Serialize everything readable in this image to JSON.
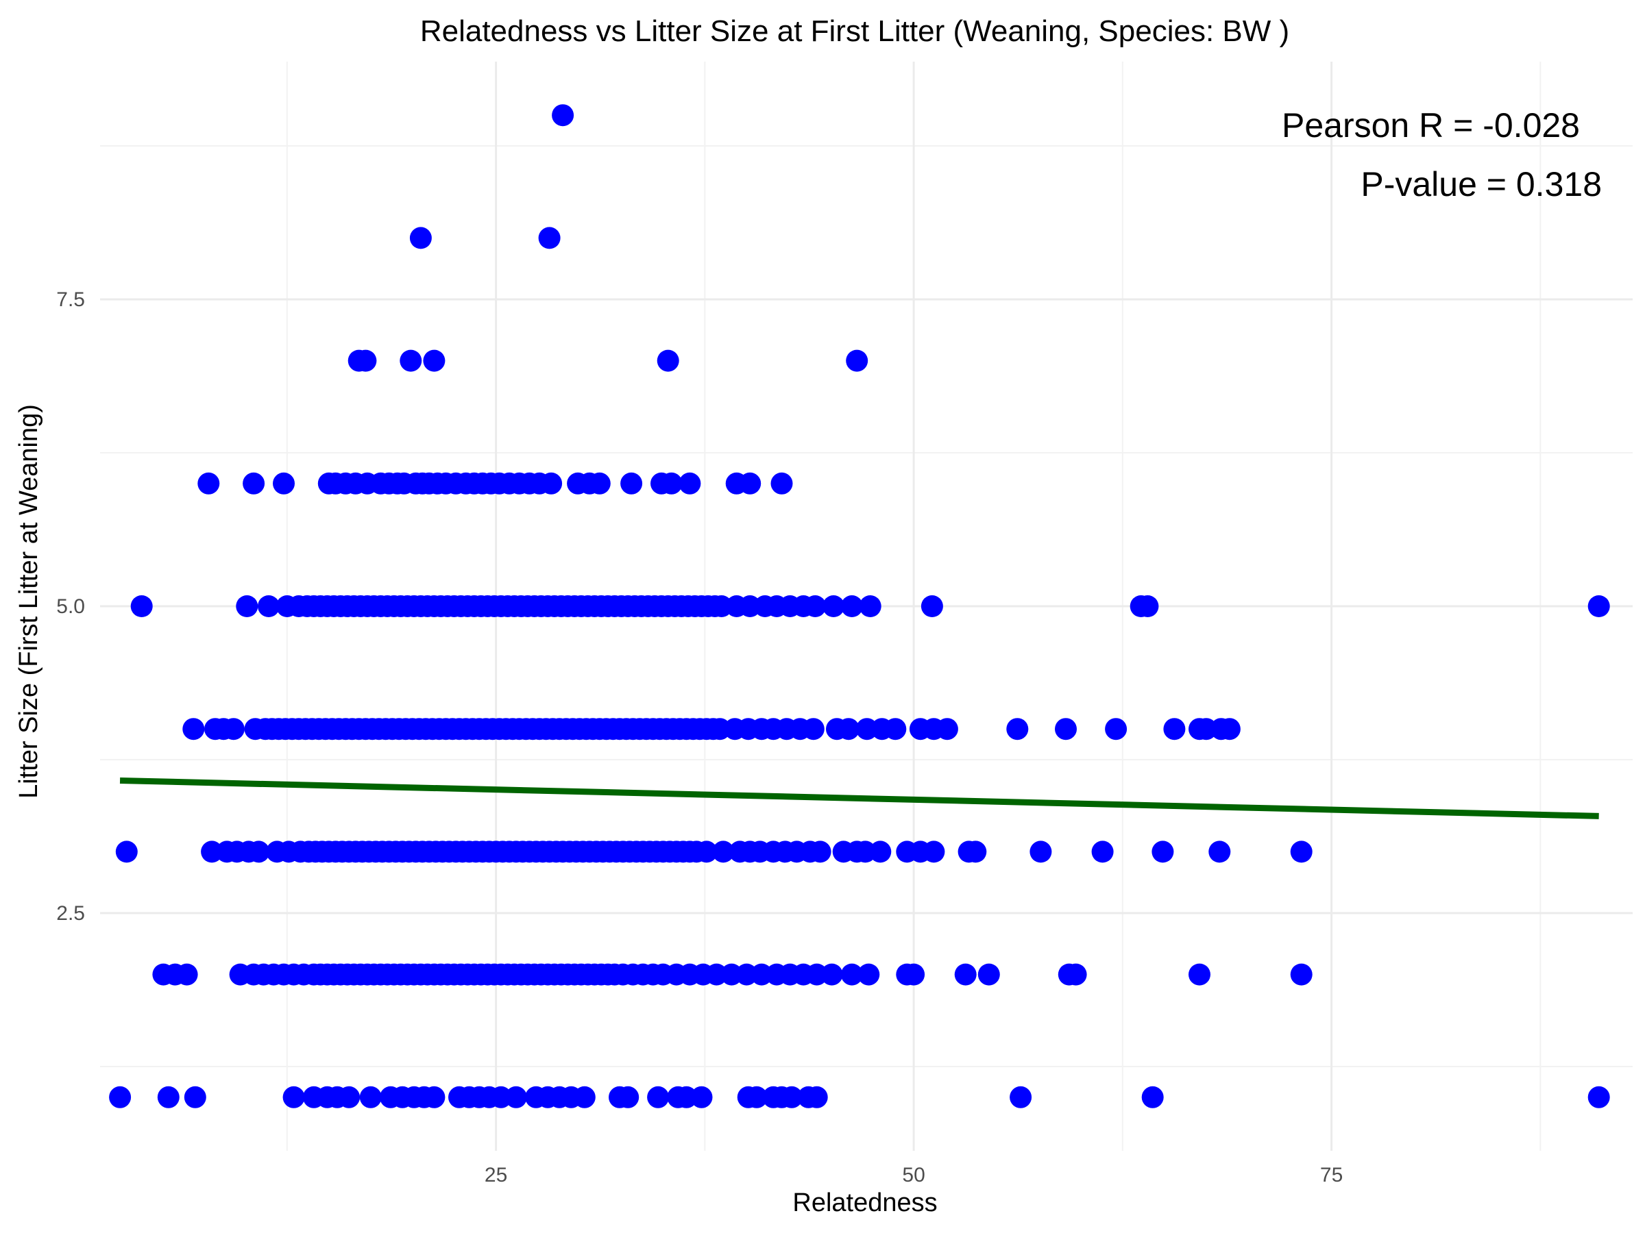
{
  "chart_data": {
    "type": "scatter",
    "title": "Relatedness vs Litter Size at First Litter (Weaning, Species: BW )",
    "xlabel": "Relatedness",
    "ylabel": "Litter Size (First Litter at Weaning)",
    "xlim": [
      -7.5,
      97.5
    ],
    "ylim": [
      0.6,
      9.5
    ],
    "x_ticks": [
      25,
      50,
      75
    ],
    "x_tick_labels": [
      "25",
      "50",
      "75"
    ],
    "y_ticks": [
      2.5,
      5.0,
      7.5
    ],
    "y_tick_labels": [
      "2.5",
      "5.0",
      "7.5"
    ],
    "grid": true,
    "point_color": "#0000ff",
    "fit_line_color": "#006400",
    "annotations": [
      "Pearson R = -0.028",
      "P-value = 0.318"
    ],
    "fit_line": {
      "x": [
        2.5,
        91.0
      ],
      "y": [
        3.58,
        3.29
      ]
    },
    "series": [
      {
        "y": 9,
        "x": [
          29.0
        ]
      },
      {
        "y": 8,
        "x": [
          20.5,
          28.2
        ]
      },
      {
        "y": 7,
        "x": [
          16.8,
          17.2,
          19.9,
          21.3,
          35.3,
          46.6
        ]
      },
      {
        "y": 6,
        "x": [
          7.8,
          10.5,
          12.3,
          15.0,
          15.4,
          16.0,
          16.6,
          17.3,
          18.1,
          18.6,
          19.1,
          19.5,
          20.2,
          20.6,
          21.0,
          21.5,
          22.0,
          22.6,
          23.2,
          23.7,
          24.2,
          24.7,
          25.2,
          25.8,
          26.4,
          27.0,
          27.6,
          28.3,
          29.9,
          30.6,
          31.2,
          33.1,
          34.9,
          35.5,
          36.6,
          39.4,
          40.2,
          42.1
        ]
      },
      {
        "y": 5,
        "x": [
          3.8,
          10.1,
          11.4,
          12.5,
          13.2,
          13.7,
          14.1,
          14.5,
          14.9,
          15.3,
          15.7,
          16.1,
          16.5,
          16.9,
          17.3,
          17.7,
          18.1,
          18.5,
          18.9,
          19.3,
          19.7,
          20.1,
          20.5,
          20.9,
          21.3,
          21.7,
          22.1,
          22.5,
          22.9,
          23.3,
          23.7,
          24.1,
          24.5,
          24.9,
          25.3,
          25.7,
          26.1,
          26.5,
          26.9,
          27.3,
          27.7,
          28.1,
          28.5,
          28.9,
          29.3,
          29.7,
          30.1,
          30.5,
          30.9,
          31.3,
          31.7,
          32.1,
          32.5,
          32.9,
          33.3,
          33.7,
          34.1,
          34.5,
          34.9,
          35.3,
          35.7,
          36.1,
          36.5,
          36.9,
          37.3,
          37.7,
          38.1,
          38.5,
          39.4,
          40.2,
          41.1,
          41.8,
          42.6,
          43.4,
          44.1,
          45.2,
          46.3,
          47.4,
          51.1,
          63.6,
          64.0,
          91.0
        ]
      },
      {
        "y": 4,
        "x": [
          6.9,
          8.2,
          8.7,
          9.3,
          10.6,
          11.2,
          11.6,
          12.0,
          12.4,
          12.8,
          13.2,
          13.6,
          14.0,
          14.4,
          14.8,
          15.2,
          15.6,
          16.0,
          16.4,
          16.8,
          17.2,
          17.6,
          18.0,
          18.4,
          18.8,
          19.2,
          19.6,
          20.0,
          20.4,
          20.8,
          21.2,
          21.6,
          22.0,
          22.4,
          22.8,
          23.2,
          23.6,
          24.0,
          24.4,
          24.8,
          25.2,
          25.6,
          26.0,
          26.4,
          26.8,
          27.2,
          27.6,
          28.0,
          28.4,
          28.8,
          29.2,
          29.6,
          30.0,
          30.4,
          30.8,
          31.2,
          31.6,
          32.0,
          32.4,
          32.8,
          33.2,
          33.6,
          34.0,
          34.4,
          34.8,
          35.2,
          35.6,
          36.0,
          36.4,
          36.8,
          37.2,
          37.6,
          38.0,
          38.4,
          39.3,
          40.1,
          40.9,
          41.6,
          42.4,
          43.2,
          44.0,
          45.4,
          46.1,
          47.2,
          48.1,
          48.9,
          50.4,
          51.2,
          52.0,
          56.2,
          59.1,
          62.1,
          65.6,
          67.1,
          67.5,
          68.4,
          68.9
        ]
      },
      {
        "y": 3,
        "x": [
          2.9,
          8.0,
          8.9,
          9.5,
          10.2,
          10.8,
          11.9,
          12.6,
          13.3,
          13.8,
          14.2,
          14.6,
          15.0,
          15.4,
          15.8,
          16.2,
          16.6,
          17.0,
          17.4,
          17.8,
          18.2,
          18.6,
          19.0,
          19.4,
          19.8,
          20.2,
          20.6,
          21.0,
          21.4,
          21.8,
          22.2,
          22.6,
          23.0,
          23.4,
          23.8,
          24.2,
          24.6,
          25.0,
          25.4,
          25.8,
          26.2,
          26.6,
          27.0,
          27.4,
          27.8,
          28.2,
          28.6,
          29.0,
          29.4,
          29.8,
          30.2,
          30.6,
          31.0,
          31.4,
          31.8,
          32.2,
          32.6,
          33.0,
          33.4,
          33.8,
          34.2,
          34.6,
          35.0,
          35.4,
          35.8,
          36.2,
          36.6,
          37.0,
          37.6,
          38.6,
          39.6,
          40.2,
          40.8,
          41.6,
          42.3,
          43.0,
          43.8,
          44.4,
          45.8,
          46.6,
          47.1,
          48.0,
          49.6,
          50.4,
          51.2,
          53.3,
          53.7,
          57.6,
          61.3,
          64.9,
          68.3,
          73.2
        ]
      },
      {
        "y": 2,
        "x": [
          5.1,
          5.8,
          6.5,
          9.7,
          10.5,
          11.1,
          11.7,
          12.3,
          12.9,
          13.5,
          14.1,
          14.5,
          14.9,
          15.3,
          15.7,
          16.1,
          16.5,
          16.9,
          17.3,
          17.7,
          18.1,
          18.5,
          18.9,
          19.3,
          19.7,
          20.1,
          20.5,
          20.9,
          21.3,
          21.7,
          22.1,
          22.5,
          22.9,
          23.3,
          23.7,
          24.1,
          24.5,
          24.9,
          25.3,
          25.7,
          26.1,
          26.5,
          26.9,
          27.3,
          27.7,
          28.1,
          28.5,
          28.9,
          29.3,
          29.7,
          30.1,
          30.5,
          30.9,
          31.3,
          31.7,
          32.1,
          32.6,
          33.2,
          33.8,
          34.4,
          35.0,
          35.8,
          36.6,
          37.4,
          38.2,
          39.1,
          40.0,
          40.9,
          41.8,
          42.6,
          43.4,
          44.2,
          45.1,
          46.3,
          47.3,
          49.6,
          50.0,
          53.1,
          54.5,
          59.3,
          59.7,
          67.1,
          73.2
        ]
      },
      {
        "y": 1,
        "x": [
          2.5,
          5.4,
          7.0,
          12.9,
          14.1,
          14.9,
          15.5,
          16.2,
          17.5,
          18.7,
          19.4,
          20.1,
          20.7,
          21.3,
          22.8,
          23.4,
          24.0,
          24.6,
          25.3,
          26.2,
          27.4,
          28.1,
          28.8,
          29.5,
          30.3,
          32.4,
          32.9,
          34.7,
          35.9,
          36.4,
          37.3,
          40.1,
          40.6,
          41.6,
          42.1,
          42.7,
          43.7,
          44.2,
          56.4,
          64.3,
          91.0
        ]
      }
    ]
  }
}
